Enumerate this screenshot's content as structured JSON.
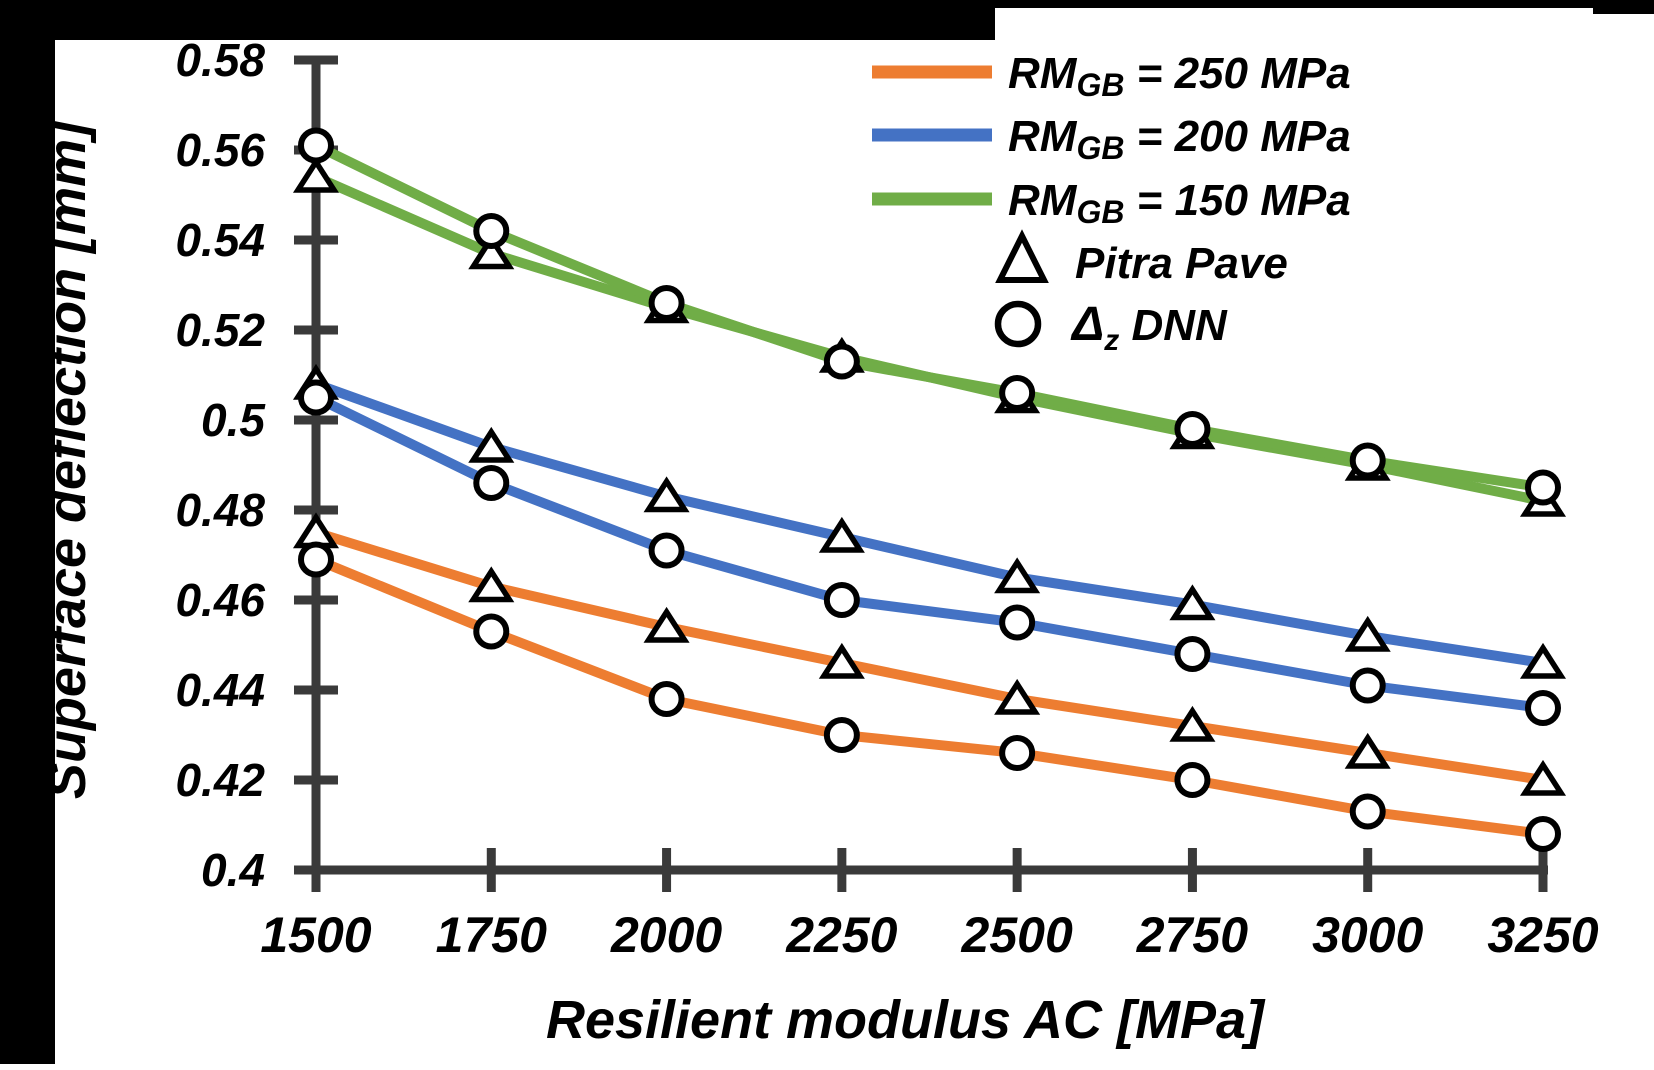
{
  "frame": {
    "background": "#ffffff",
    "bar_color": "#000000",
    "axis_color": "#3a3a3a",
    "text_color": "#000000",
    "marker_stroke": "#000000",
    "marker_fill": "#ffffff"
  },
  "chart_data": {
    "type": "line",
    "title": "",
    "xlabel": "Resilient modulus AC [MPa]",
    "ylabel": "Superface deflection [mm]",
    "grid": false,
    "legend_position": "top-right",
    "xlim": [
      1500,
      3250
    ],
    "ylim": [
      0.4,
      0.58
    ],
    "x": [
      1500,
      1750,
      2000,
      2250,
      2500,
      2750,
      3000,
      3250
    ],
    "x_ticks": [
      {
        "label": "1500",
        "value": 1500
      },
      {
        "label": "1750",
        "value": 1750
      },
      {
        "label": "2000",
        "value": 2000
      },
      {
        "label": "2250",
        "value": 2250
      },
      {
        "label": "2500",
        "value": 2500
      },
      {
        "label": "2750",
        "value": 2750
      },
      {
        "label": "3000",
        "value": 3000
      },
      {
        "label": "3250",
        "value": 3250
      }
    ],
    "y_ticks": [
      {
        "label": "0.58",
        "value": 0.58
      },
      {
        "label": "0.56",
        "value": 0.56
      },
      {
        "label": "0.54",
        "value": 0.54
      },
      {
        "label": "0.52",
        "value": 0.52
      },
      {
        "label": "0.5",
        "value": 0.5
      },
      {
        "label": "0.48",
        "value": 0.48
      },
      {
        "label": "0.46",
        "value": 0.46
      },
      {
        "label": "0.44",
        "value": 0.44
      },
      {
        "label": "0.42",
        "value": 0.42
      },
      {
        "label": "0.4",
        "value": 0.4
      }
    ],
    "series": [
      {
        "name": "RMGB = 250 MPa",
        "rm_gb_mpa": 250,
        "color": "#ED7D31",
        "pitra_pave": [
          0.475,
          0.463,
          0.454,
          0.446,
          0.438,
          0.432,
          0.426,
          0.42
        ],
        "dnn": [
          0.469,
          0.453,
          0.438,
          0.43,
          0.426,
          0.42,
          0.413,
          0.408
        ]
      },
      {
        "name": "RMGB = 200 MPa",
        "rm_gb_mpa": 200,
        "color": "#4472C4",
        "pitra_pave": [
          0.508,
          0.494,
          0.483,
          0.474,
          0.465,
          0.459,
          0.452,
          0.446
        ],
        "dnn": [
          0.505,
          0.486,
          0.471,
          0.46,
          0.455,
          0.448,
          0.441,
          0.436
        ]
      },
      {
        "name": "RMGB = 150 MPa",
        "rm_gb_mpa": 150,
        "color": "#70AD47",
        "pitra_pave": [
          0.554,
          0.537,
          0.525,
          0.514,
          0.505,
          0.497,
          0.49,
          0.482
        ],
        "dnn": [
          0.561,
          0.542,
          0.526,
          0.513,
          0.506,
          0.498,
          0.491,
          0.485
        ]
      }
    ],
    "legend": {
      "line_entries": [
        {
          "prefix": "RM",
          "sub": "GB",
          "rest": " = 250 MPa",
          "color": "#ED7D31"
        },
        {
          "prefix": "RM",
          "sub": "GB",
          "rest": " = 200 MPa",
          "color": "#4472C4"
        },
        {
          "prefix": "RM",
          "sub": "GB",
          "rest": " = 150 MPa",
          "color": "#70AD47"
        }
      ],
      "marker_entries": [
        {
          "marker": "triangle",
          "prefix": "Pitra Pave",
          "sub": "",
          "rest": ""
        },
        {
          "marker": "circle",
          "prefix": "Δ",
          "sub": "z",
          "rest": "  DNN"
        }
      ]
    }
  }
}
